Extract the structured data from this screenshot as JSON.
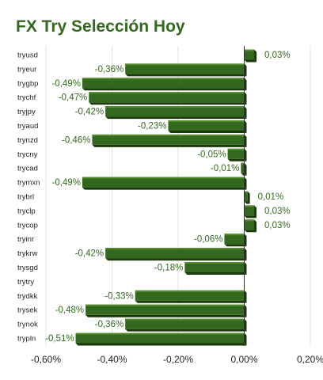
{
  "chart_data": {
    "type": "bar",
    "orientation": "horizontal",
    "title": "FX Try Selección Hoy",
    "categories": [
      "tryusd",
      "tryeur",
      "trygbp",
      "trychf",
      "tryjpy",
      "tryaud",
      "trynzd",
      "trycny",
      "trycad",
      "trymxn",
      "trybrl",
      "tryclp",
      "trycop",
      "tryinr",
      "trykrw",
      "trysgd",
      "trytry",
      "trydkk",
      "trysek",
      "trynok",
      "trypln"
    ],
    "values": [
      0.03,
      -0.36,
      -0.49,
      -0.47,
      -0.42,
      -0.23,
      -0.46,
      -0.05,
      -0.01,
      -0.49,
      0.01,
      0.03,
      0.03,
      -0.06,
      -0.42,
      -0.18,
      0,
      -0.33,
      -0.48,
      -0.36,
      -0.51
    ],
    "value_labels": [
      "0,03%",
      "-0,36%",
      "-0,49%",
      "-0,47%",
      "-0,42%",
      "-0,23%",
      "-0,46%",
      "-0,05%",
      "-0,01%",
      "-0,49%",
      "0,01%",
      "0,03%",
      "0,03%",
      "-0,06%",
      "-0,42%",
      "-0,18%",
      "",
      "-0,33%",
      "-0,48%",
      "-0,36%",
      "-0,51%"
    ],
    "x_ticks": [
      -0.6,
      -0.4,
      -0.2,
      0,
      0.2
    ],
    "x_tick_labels": [
      "-0,60%",
      "-0,40%",
      "-0,20%",
      "0,00%",
      "0,20%"
    ],
    "xlim": [
      -0.6,
      0.2
    ],
    "grid": true,
    "legend": "none",
    "colors": {
      "bar": "#33691e",
      "bar_top": "#558b2f",
      "bar_shadow": "#1b3a0c",
      "grid": "#e0e0e0",
      "label": "#33691e"
    }
  }
}
